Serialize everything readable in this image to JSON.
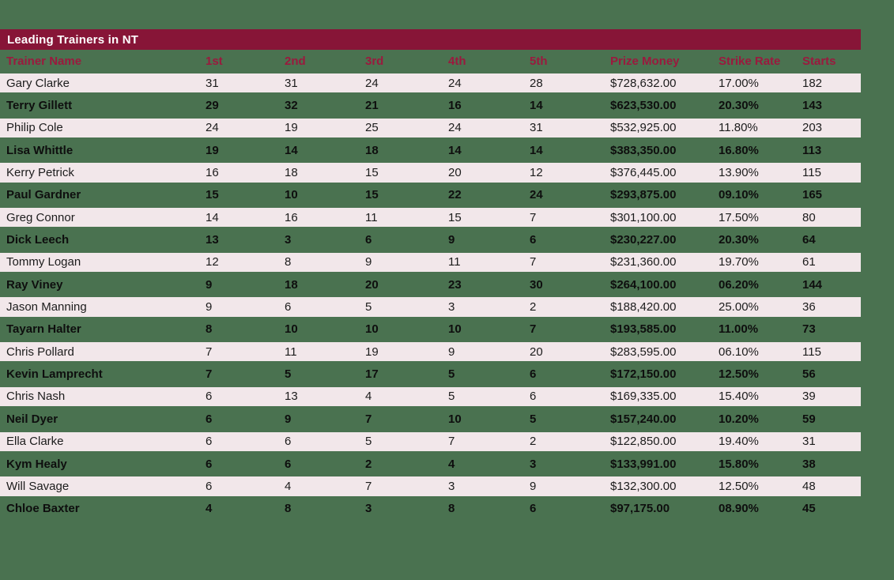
{
  "title": "Leading Trainers in NT",
  "colors": {
    "background_green": "#4a7250",
    "title_bar_maroon": "#871537",
    "header_text_maroon": "#9a1a3e",
    "row_pink": "#f2e7ea",
    "title_text": "#ffffff",
    "data_text": "#1c1c1c"
  },
  "chart_data": {
    "type": "table",
    "title": "Leading Trainers in NT",
    "columns": [
      "Trainer Name",
      "1st",
      "2nd",
      "3rd",
      "4th",
      "5th",
      "Prize Money",
      "Strike Rate",
      "Starts"
    ],
    "rows": [
      [
        "Gary Clarke",
        "31",
        "31",
        "24",
        "24",
        "28",
        "$728,632.00",
        "17.00%",
        "182"
      ],
      [
        "Terry Gillett",
        "29",
        "32",
        "21",
        "16",
        "14",
        "$623,530.00",
        "20.30%",
        "143"
      ],
      [
        "Philip Cole",
        "24",
        "19",
        "25",
        "24",
        "31",
        "$532,925.00",
        "11.80%",
        "203"
      ],
      [
        "Lisa Whittle",
        "19",
        "14",
        "18",
        "14",
        "14",
        "$383,350.00",
        "16.80%",
        "113"
      ],
      [
        "Kerry Petrick",
        "16",
        "18",
        "15",
        "20",
        "12",
        "$376,445.00",
        "13.90%",
        "115"
      ],
      [
        "Paul Gardner",
        "15",
        "10",
        "15",
        "22",
        "24",
        "$293,875.00",
        "09.10%",
        "165"
      ],
      [
        "Greg Connor",
        "14",
        "16",
        "11",
        "15",
        "7",
        "$301,100.00",
        "17.50%",
        "80"
      ],
      [
        "Dick Leech",
        "13",
        "3",
        "6",
        "9",
        "6",
        "$230,227.00",
        "20.30%",
        "64"
      ],
      [
        "Tommy Logan",
        "12",
        "8",
        "9",
        "11",
        "7",
        "$231,360.00",
        "19.70%",
        "61"
      ],
      [
        "Ray Viney",
        "9",
        "18",
        "20",
        "23",
        "30",
        "$264,100.00",
        "06.20%",
        "144"
      ],
      [
        "Jason Manning",
        "9",
        "6",
        "5",
        "3",
        "2",
        "$188,420.00",
        "25.00%",
        "36"
      ],
      [
        "Tayarn Halter",
        "8",
        "10",
        "10",
        "10",
        "7",
        "$193,585.00",
        "11.00%",
        "73"
      ],
      [
        "Chris Pollard",
        "7",
        "11",
        "19",
        "9",
        "20",
        "$283,595.00",
        "06.10%",
        "115"
      ],
      [
        "Kevin Lamprecht",
        "7",
        "5",
        "17",
        "5",
        "6",
        "$172,150.00",
        "12.50%",
        "56"
      ],
      [
        "Chris Nash",
        "6",
        "13",
        "4",
        "5",
        "6",
        "$169,335.00",
        "15.40%",
        "39"
      ],
      [
        "Neil Dyer",
        "6",
        "9",
        "7",
        "10",
        "5",
        "$157,240.00",
        "10.20%",
        "59"
      ],
      [
        "Ella Clarke",
        "6",
        "6",
        "5",
        "7",
        "2",
        "$122,850.00",
        "19.40%",
        "31"
      ],
      [
        "Kym Healy",
        "6",
        "6",
        "2",
        "4",
        "3",
        "$133,991.00",
        "15.80%",
        "38"
      ],
      [
        "Will Savage",
        "6",
        "4",
        "7",
        "3",
        "9",
        "$132,300.00",
        "12.50%",
        "48"
      ],
      [
        "Chloe Baxter",
        "4",
        "8",
        "3",
        "8",
        "6",
        "$97,175.00",
        "08.90%",
        "45"
      ]
    ]
  }
}
